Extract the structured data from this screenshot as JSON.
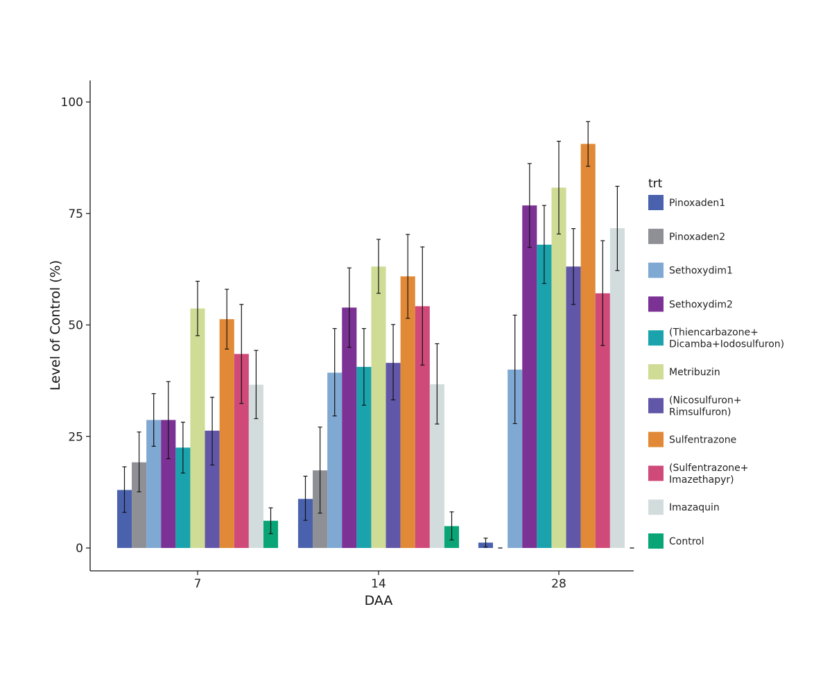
{
  "chart_data": {
    "type": "bar",
    "xlabel": "DAA",
    "ylabel": "Level of Control (%)",
    "categories": [
      "7",
      "14",
      "28"
    ],
    "ylim": [
      -5,
      105
    ],
    "yticks": [
      "0",
      "25",
      "50",
      "75",
      "100"
    ],
    "legend_title": "trt",
    "legend_position": "right",
    "grid": false,
    "series": [
      {
        "name": "Pinoxaden1",
        "label_lines": [
          "Pinoxaden1"
        ],
        "color": "#4a62ad",
        "values": [
          13,
          11,
          1.2
        ],
        "err_low": [
          8,
          6.2,
          0.2
        ],
        "err_high": [
          18.2,
          16.1,
          2.2
        ]
      },
      {
        "name": "Pinoxaden2",
        "label_lines": [
          "Pinoxaden2"
        ],
        "color": "#8e9096",
        "values": [
          19.2,
          17.4,
          0
        ],
        "err_low": [
          12.6,
          7.8,
          0
        ],
        "err_high": [
          26,
          27.1,
          0
        ]
      },
      {
        "name": "Sethoxydim1",
        "label_lines": [
          "Sethoxydim1"
        ],
        "color": "#7fa8d2",
        "values": [
          28.7,
          39.3,
          40
        ],
        "err_low": [
          22.8,
          29.6,
          27.9
        ],
        "err_high": [
          34.6,
          49.2,
          52.2
        ]
      },
      {
        "name": "Sethoxydim2",
        "label_lines": [
          "Sethoxydim2"
        ],
        "color": "#7b3294",
        "values": [
          28.7,
          53.9,
          76.8
        ],
        "err_low": [
          20,
          45,
          67.4
        ],
        "err_high": [
          37.3,
          62.8,
          86.2
        ]
      },
      {
        "name": "(Thiencarbazone+ Dicamba+Iodosulfuron)",
        "label_lines": [
          "(Thiencarbazone+",
          "Dicamba+Iodosulfuron)"
        ],
        "color": "#1aa3ad",
        "values": [
          22.5,
          40.6,
          68
        ],
        "err_low": [
          16.8,
          32,
          59.3
        ],
        "err_high": [
          28.2,
          49.2,
          76.8
        ]
      },
      {
        "name": "Metribuzin",
        "label_lines": [
          "Metribuzin"
        ],
        "color": "#cfdc95",
        "values": [
          53.7,
          63.1,
          80.8
        ],
        "err_low": [
          47.6,
          57.1,
          70.4
        ],
        "err_high": [
          59.8,
          69.2,
          91.2
        ]
      },
      {
        "name": "(Nicosulfuron+ Rimsulfuron)",
        "label_lines": [
          "(Nicosulfuron+",
          "Rimsulfuron)"
        ],
        "color": "#6157a8",
        "values": [
          26.3,
          41.5,
          63.1
        ],
        "err_low": [
          18.6,
          33.2,
          54.6
        ],
        "err_high": [
          33.8,
          50.1,
          71.6
        ]
      },
      {
        "name": "Sulfentrazone",
        "label_lines": [
          "Sulfentrazone"
        ],
        "color": "#e18936",
        "values": [
          51.3,
          60.9,
          90.6
        ],
        "err_low": [
          44.6,
          51.5,
          85.6
        ],
        "err_high": [
          58,
          70.3,
          95.6
        ]
      },
      {
        "name": "(Sulfentrazone+ Imazethapyr)",
        "label_lines": [
          "(Sulfentrazone+",
          "Imazethapyr)"
        ],
        "color": "#cf4a78",
        "values": [
          43.5,
          54.2,
          57.1
        ],
        "err_low": [
          32.4,
          41,
          45.4
        ],
        "err_high": [
          54.6,
          67.5,
          68.9
        ]
      },
      {
        "name": "Imazaquin",
        "label_lines": [
          "Imazaquin"
        ],
        "color": "#d3dcdc",
        "values": [
          36.6,
          36.7,
          71.7
        ],
        "err_low": [
          29,
          27.8,
          62.2
        ],
        "err_high": [
          44.3,
          45.8,
          81.1
        ]
      },
      {
        "name": "Control",
        "label_lines": [
          "Control"
        ],
        "color": "#0aa577",
        "values": [
          6.1,
          4.9,
          0
        ],
        "err_low": [
          3.2,
          1.8,
          0
        ],
        "err_high": [
          9,
          8.1,
          0
        ]
      }
    ]
  }
}
